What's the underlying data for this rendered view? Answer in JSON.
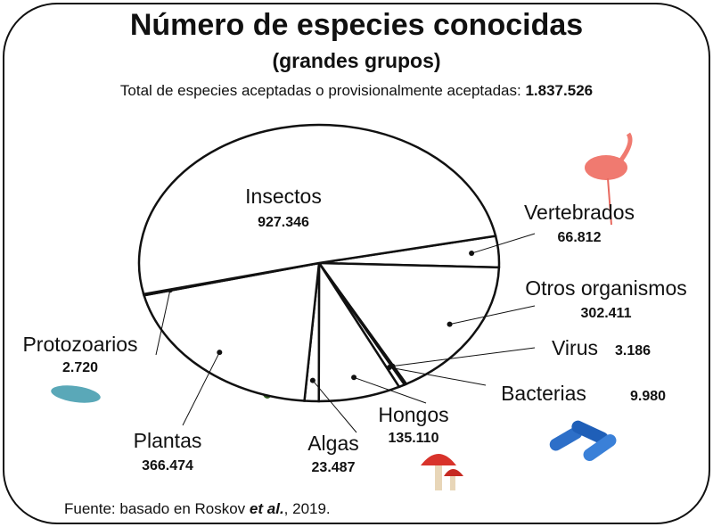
{
  "chart_data": {
    "type": "pie",
    "title": "Número de especies conocidas",
    "subtitle": "(grandes grupos)",
    "total_text": "Total de especies aceptadas o provisionalmente aceptadas: ",
    "total": "1.837.526",
    "source": [
      "Fuente: basado en Roskov ",
      "et al.",
      ", 2019."
    ],
    "categories": [
      "Vertebrados",
      "Otros organismos",
      "Virus",
      "Bacterias",
      "Hongos",
      "Algas",
      "Plantas",
      "Protozoarios",
      "Insectos"
    ],
    "values": [
      66812,
      302411,
      3186,
      9980,
      135110,
      23487,
      366474,
      2720,
      927346
    ],
    "value_labels": [
      "66.812",
      "302.411",
      "3.186",
      "9.980",
      "135.110",
      "23.487",
      "366.474",
      "2.720",
      "927.346"
    ],
    "color": "#ffffff"
  }
}
